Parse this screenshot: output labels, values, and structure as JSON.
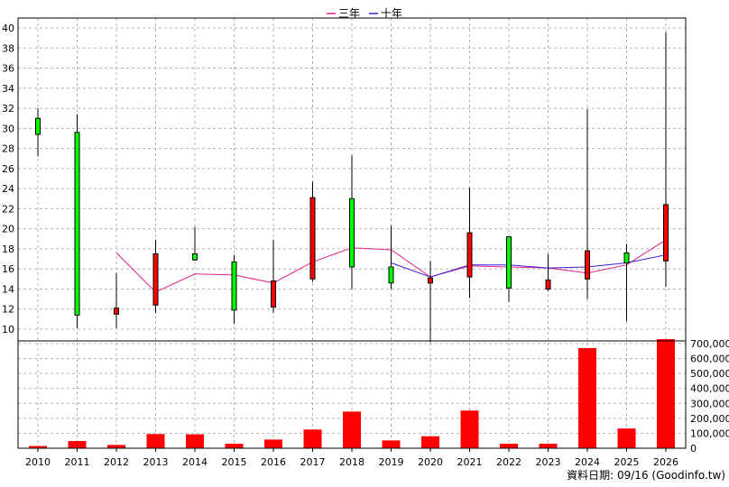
{
  "chart_data": {
    "type": "candlestick+bar",
    "legend": [
      {
        "name": "三年",
        "color": "#e0208c"
      },
      {
        "name": "十年",
        "color": "#4020d0"
      }
    ],
    "credit": "資料日期: 09/16 (Goodinfo.tw)",
    "grid": true,
    "legend_position": "top-center",
    "colors": {
      "up": "#ff0000",
      "down": "#00ff00",
      "volume": "#ff0000",
      "wick": "#000000"
    },
    "price_axis": {
      "min": 10,
      "max": 40,
      "ticks": [
        10,
        12,
        14,
        16,
        18,
        20,
        22,
        24,
        26,
        28,
        30,
        32,
        34,
        36,
        38,
        40
      ],
      "position": "left"
    },
    "volume_axis": {
      "min": 0,
      "max": 700000,
      "ticks": [
        "0",
        "100,000",
        "200,000",
        "300,000",
        "400,000",
        "500,000",
        "600,000",
        "700,000"
      ],
      "position": "right"
    },
    "years": [
      "2010",
      "2011",
      "2012",
      "2013",
      "2014",
      "2015",
      "2016",
      "2017",
      "2018",
      "2019",
      "2020",
      "2021",
      "2022",
      "2023",
      "2024",
      "2025",
      "2026"
    ],
    "candles": [
      {
        "year": "2010",
        "open": 31.0,
        "close": 29.4,
        "high": 32.0,
        "low": 27.2
      },
      {
        "year": "2011",
        "open": 29.6,
        "close": 11.4,
        "high": 31.4,
        "low": 10.1
      },
      {
        "year": "2012",
        "open": 11.5,
        "close": 12.1,
        "high": 15.6,
        "low": 10.1
      },
      {
        "year": "2013",
        "open": 12.4,
        "close": 17.5,
        "high": 18.9,
        "low": 11.6
      },
      {
        "year": "2014",
        "open": 17.5,
        "close": 16.9,
        "high": 20.2,
        "low": 16.8
      },
      {
        "year": "2015",
        "open": 16.7,
        "close": 11.9,
        "high": 17.4,
        "low": 10.5
      },
      {
        "year": "2016",
        "open": 12.2,
        "close": 14.8,
        "high": 18.9,
        "low": 11.6
      },
      {
        "year": "2017",
        "open": 15.0,
        "close": 23.1,
        "high": 24.7,
        "low": 14.7
      },
      {
        "year": "2018",
        "open": 23.0,
        "close": 16.2,
        "high": 27.3,
        "low": 14.0
      },
      {
        "year": "2019",
        "open": 16.2,
        "close": 14.6,
        "high": 20.3,
        "low": 14.0
      },
      {
        "year": "2020",
        "open": 14.6,
        "close": 15.1,
        "high": 16.8,
        "low": 8.7
      },
      {
        "year": "2021",
        "open": 15.2,
        "close": 19.6,
        "high": 24.1,
        "low": 13.1
      },
      {
        "year": "2022",
        "open": 19.2,
        "close": 14.1,
        "high": 19.2,
        "low": 12.7
      },
      {
        "year": "2023",
        "open": 14.0,
        "close": 14.9,
        "high": 17.5,
        "low": 13.8
      },
      {
        "year": "2024",
        "open": 15.0,
        "close": 17.8,
        "high": 31.9,
        "low": 13.0
      },
      {
        "year": "2025",
        "open": 17.6,
        "close": 16.6,
        "high": 18.5,
        "low": 10.8
      },
      {
        "year": "2026",
        "open": 16.8,
        "close": 22.4,
        "high": 39.6,
        "low": 14.2
      }
    ],
    "series": [
      {
        "name": "三年",
        "start_year": "2012",
        "values": [
          17.6,
          13.7,
          15.5,
          15.4,
          14.6,
          16.7,
          18.1,
          17.9,
          15.2,
          16.3,
          16.2,
          16.1,
          15.6,
          16.4,
          18.9
        ]
      },
      {
        "name": "十年",
        "start_year": "2019",
        "values": [
          16.6,
          15.2,
          16.4,
          16.4,
          16.1,
          16.2,
          16.6,
          17.4
        ]
      }
    ],
    "volume": [
      15000,
      48000,
      22000,
      95000,
      93000,
      30000,
      58000,
      125000,
      245000,
      52000,
      80000,
      252000,
      30000,
      30000,
      670000,
      132000,
      730000
    ]
  }
}
